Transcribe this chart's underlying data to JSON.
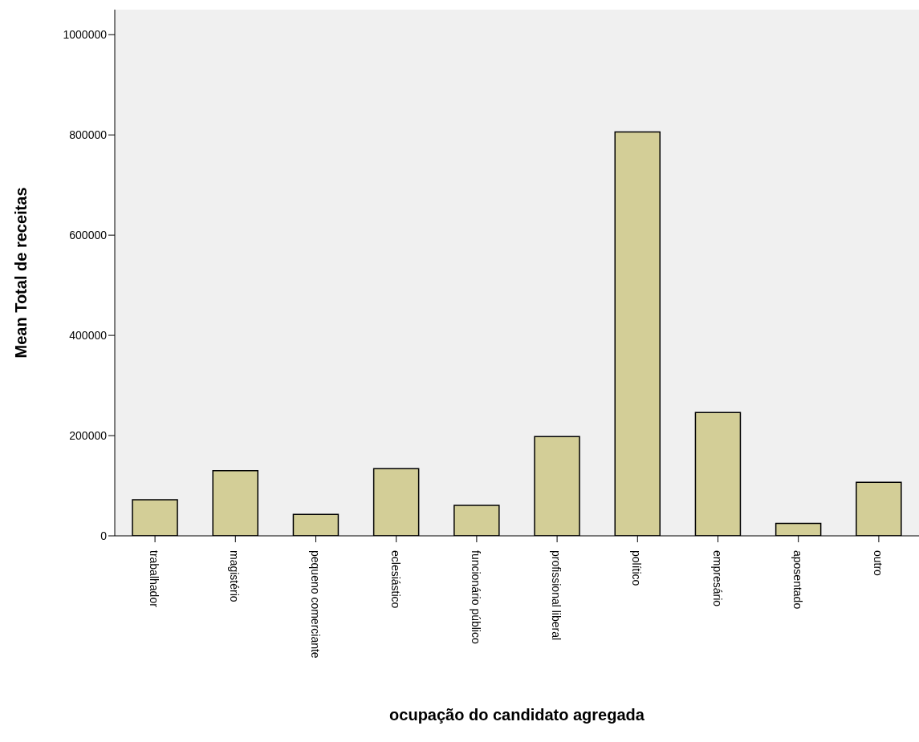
{
  "chart_data": {
    "type": "bar",
    "xlabel": "ocupação do candidato agregada",
    "ylabel": "Mean Total de receitas",
    "categories": [
      "trabalhador",
      "magistério",
      "pequeno comerciante",
      "eclesiástico",
      "funcionário público",
      "profissional liberal",
      "político",
      "empresário",
      "aposentado",
      "outro"
    ],
    "values": [
      72000,
      130000,
      43000,
      134000,
      61000,
      198000,
      806000,
      246000,
      25000,
      107000
    ],
    "color": "#d3ce97",
    "ylim": [
      0,
      1050000
    ],
    "yticks": [
      0,
      200000,
      400000,
      600000,
      800000,
      1000000
    ],
    "grid": false
  }
}
